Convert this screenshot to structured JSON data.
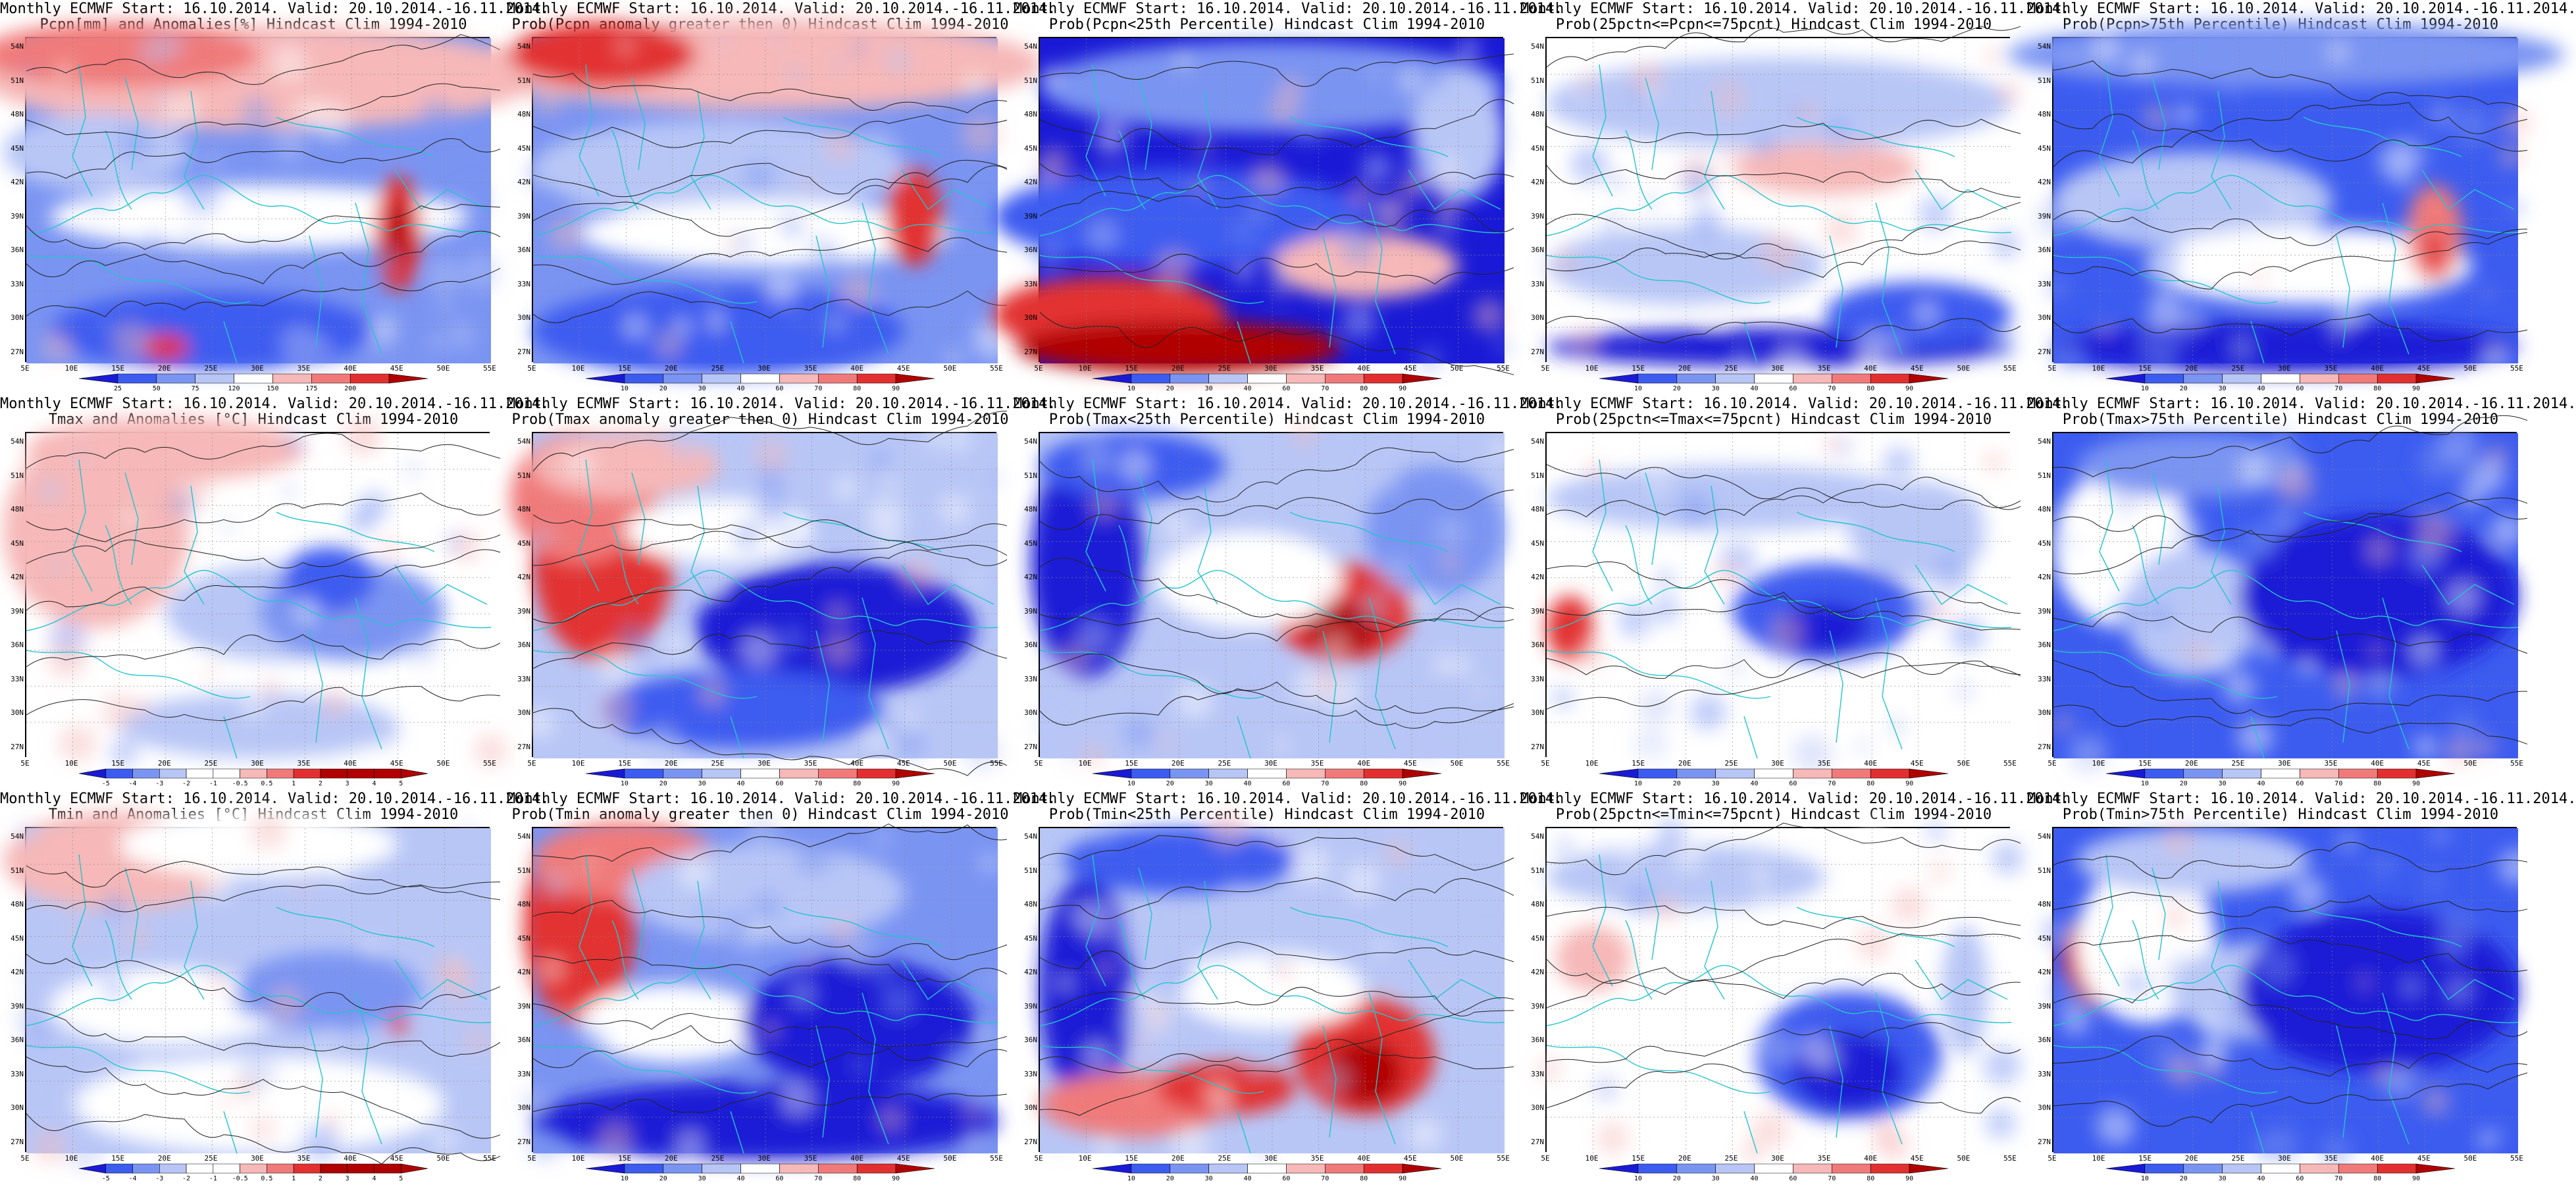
{
  "lat_ticks": [
    "54N",
    "51N",
    "48N",
    "45N",
    "42N",
    "39N",
    "36N",
    "33N",
    "30N",
    "27N"
  ],
  "lon_ticks": [
    "5E",
    "10E",
    "15E",
    "20E",
    "25E",
    "30E",
    "35E",
    "40E",
    "45E",
    "50E",
    "55E"
  ],
  "colors": {
    "deep_blue": "#1a1ad6",
    "blue": "#3c5cf0",
    "mid_blue": "#7a94f2",
    "light_blue": "#b8c6f6",
    "white": "#ffffff",
    "light_red": "#f6b8b8",
    "mid_red": "#f07a7a",
    "red": "#e23030",
    "deep_red": "#b00000",
    "contour": "#222222",
    "border": "#25c4cc"
  },
  "colorbars": {
    "anom_pcpn": [
      "25",
      "50",
      "75",
      "120",
      "150",
      "175",
      "200"
    ],
    "prob": [
      "10",
      "20",
      "30",
      "40",
      "60",
      "70",
      "80",
      "90"
    ],
    "anom_temp": [
      "-5",
      "-4",
      "-3",
      "-2",
      "-1",
      "-0.5",
      "0.5",
      "1",
      "2",
      "3",
      "4",
      "5"
    ]
  },
  "panels": [
    {
      "line1": "Monthly ECMWF Start: 16.10.2014. Valid: 20.10.2014.-16.11.2014.",
      "line2": "Pcpn[mm] and Anomalies[%] Hindcast Clim 1994-2010",
      "cbar": "anom_pcpn",
      "pattern": "pcpn_anom"
    },
    {
      "line1": "Monthly ECMWF Start: 16.10.2014. Valid: 20.10.2014.-16.11.2014.",
      "line2": "Prob(Pcpn anomaly greater then 0) Hindcast Clim 1994-2010",
      "cbar": "prob",
      "pattern": "pcpn_gt0"
    },
    {
      "line1": "Monthly ECMWF Start: 16.10.2014. Valid: 20.10.2014.-16.11.2014.",
      "line2": "Prob(Pcpn<25th Percentile) Hindcast Clim 1994-2010",
      "cbar": "prob",
      "pattern": "pcpn_lt25"
    },
    {
      "line1": "Monthly ECMWF Start: 16.10.2014. Valid: 20.10.2014.-16.11.2014.",
      "line2": "Prob(25pctn<=Pcpn<=75pcnt) Hindcast Clim 1994-2010",
      "cbar": "prob",
      "pattern": "pcpn_mid"
    },
    {
      "line1": "Monthly ECMWF Start: 16.10.2014. Valid: 20.10.2014.-16.11.2014.",
      "line2": "Prob(Pcpn>75th Percentile) Hindcast Clim 1994-2010",
      "cbar": "prob",
      "pattern": "pcpn_gt75"
    },
    {
      "line1": "Monthly ECMWF Start: 16.10.2014. Valid: 20.10.2014.-16.11.2014.",
      "line2": "Tmax and Anomalies [°C] Hindcast Clim 1994-2010",
      "cbar": "anom_temp",
      "pattern": "tmax_anom"
    },
    {
      "line1": "Monthly ECMWF Start: 16.10.2014. Valid: 20.10.2014.-16.11.2014.",
      "line2": "Prob(Tmax anomaly greater then 0) Hindcast Clim 1994-2010",
      "cbar": "prob",
      "pattern": "tmax_gt0"
    },
    {
      "line1": "Monthly ECMWF Start: 16.10.2014. Valid: 20.10.2014.-16.11.2014.",
      "line2": "Prob(Tmax<25th Percentile) Hindcast Clim 1994-2010",
      "cbar": "prob",
      "pattern": "tmax_lt25"
    },
    {
      "line1": "Monthly ECMWF Start: 16.10.2014. Valid: 20.10.2014.-16.11.2014.",
      "line2": "Prob(25pctn<=Tmax<=75pcnt) Hindcast Clim 1994-2010",
      "cbar": "prob",
      "pattern": "tmax_mid"
    },
    {
      "line1": "Monthly ECMWF Start: 16.10.2014. Valid: 20.10.2014.-16.11.2014.",
      "line2": "Prob(Tmax>75th Percentile) Hindcast Clim 1994-2010",
      "cbar": "prob",
      "pattern": "tmax_gt75"
    },
    {
      "line1": "Monthly ECMWF Start: 16.10.2014. Valid: 20.10.2014.-16.11.2014.",
      "line2": "Tmin and Anomalies [°C] Hindcast Clim 1994-2010",
      "cbar": "anom_temp",
      "pattern": "tmin_anom"
    },
    {
      "line1": "Monthly ECMWF Start: 16.10.2014. Valid: 20.10.2014.-16.11.2014.",
      "line2": "Prob(Tmin anomaly greater then 0) Hindcast Clim 1994-2010",
      "cbar": "prob",
      "pattern": "tmin_gt0"
    },
    {
      "line1": "Monthly ECMWF Start: 16.10.2014. Valid: 20.10.2014.-16.11.2014.",
      "line2": "Prob(Tmin<25th Percentile) Hindcast Clim 1994-2010",
      "cbar": "prob",
      "pattern": "tmin_lt25"
    },
    {
      "line1": "Monthly ECMWF Start: 16.10.2014. Valid: 20.10.2014.-16.11.2014.",
      "line2": "Prob(25pctn<=Tmin<=75pcnt) Hindcast Clim 1994-2010",
      "cbar": "prob",
      "pattern": "tmin_mid"
    },
    {
      "line1": "Monthly ECMWF Start: 16.10.2014. Valid: 20.10.2014.-16.11.2014.",
      "line2": "Prob(Tmin>75th Percentile) Hindcast Clim 1994-2010",
      "cbar": "prob",
      "pattern": "tmin_gt75"
    }
  ]
}
